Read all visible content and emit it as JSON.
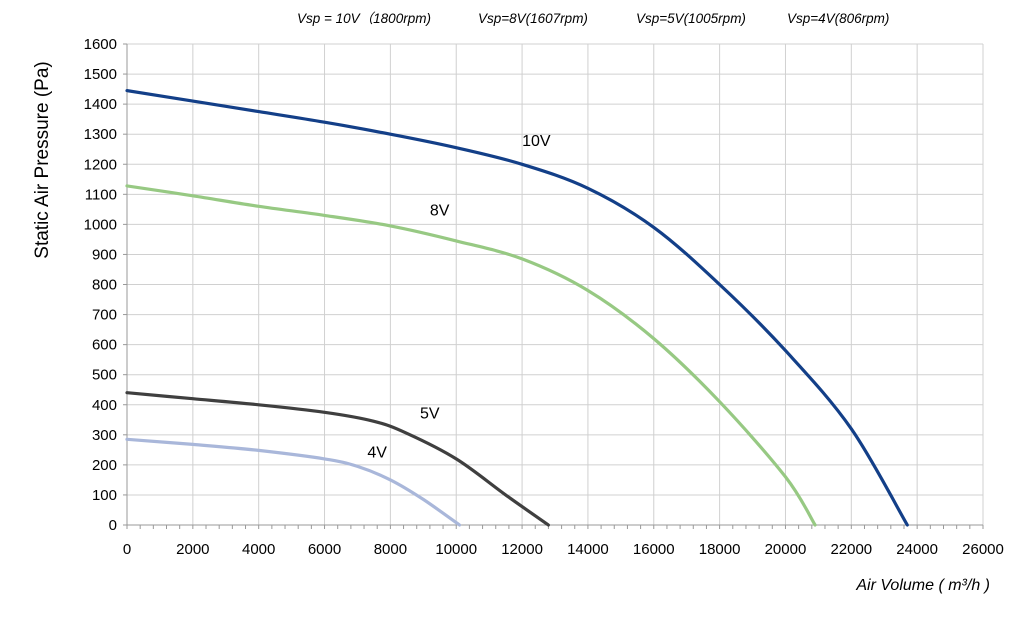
{
  "chart_data": {
    "type": "line",
    "subtitles": [
      "Vsp = 10V（1800rpm)",
      "Vsp=8V(1607rpm)",
      "Vsp=5V(1005rpm)",
      "Vsp=4V(806rpm)"
    ],
    "xlabel": "Air Volume ( m³/h )",
    "ylabel": "Static Air Pressure  (Pa)",
    "xlim": [
      0,
      26000
    ],
    "ylim": [
      0,
      1600
    ],
    "x_ticks": [
      0,
      2000,
      4000,
      6000,
      8000,
      10000,
      12000,
      14000,
      16000,
      18000,
      20000,
      22000,
      24000,
      26000
    ],
    "y_ticks": [
      0,
      100,
      200,
      300,
      400,
      500,
      600,
      700,
      800,
      900,
      1000,
      1100,
      1200,
      1300,
      1400,
      1500,
      1600
    ],
    "grid": true,
    "legend": "none",
    "series": [
      {
        "name": "10V",
        "color": "#133f88",
        "label_at": [
          12000,
          1260
        ],
        "points": [
          [
            0,
            1445
          ],
          [
            2000,
            1410
          ],
          [
            4000,
            1375
          ],
          [
            6000,
            1340
          ],
          [
            8000,
            1300
          ],
          [
            10000,
            1255
          ],
          [
            12000,
            1200
          ],
          [
            14000,
            1120
          ],
          [
            16000,
            990
          ],
          [
            18000,
            800
          ],
          [
            20000,
            580
          ],
          [
            22000,
            320
          ],
          [
            23700,
            0
          ]
        ]
      },
      {
        "name": "8V",
        "color": "#97c983",
        "label_at": [
          9200,
          1030
        ],
        "points": [
          [
            0,
            1128
          ],
          [
            2000,
            1095
          ],
          [
            4000,
            1060
          ],
          [
            6000,
            1030
          ],
          [
            8000,
            995
          ],
          [
            10000,
            945
          ],
          [
            12000,
            885
          ],
          [
            14000,
            780
          ],
          [
            16000,
            620
          ],
          [
            18000,
            410
          ],
          [
            20000,
            160
          ],
          [
            20900,
            0
          ]
        ]
      },
      {
        "name": "5V",
        "color": "#3f3f3f",
        "label_at": [
          8900,
          355
        ],
        "points": [
          [
            0,
            440
          ],
          [
            2000,
            420
          ],
          [
            4000,
            400
          ],
          [
            6000,
            375
          ],
          [
            7500,
            345
          ],
          [
            8500,
            305
          ],
          [
            10000,
            220
          ],
          [
            11500,
            100
          ],
          [
            12800,
            0
          ]
        ]
      },
      {
        "name": "4V",
        "color": "#a9b7da",
        "label_at": [
          7300,
          225
        ],
        "points": [
          [
            0,
            285
          ],
          [
            2000,
            268
          ],
          [
            4000,
            248
          ],
          [
            6000,
            220
          ],
          [
            7000,
            195
          ],
          [
            8000,
            150
          ],
          [
            9000,
            85
          ],
          [
            10100,
            0
          ]
        ]
      }
    ]
  }
}
